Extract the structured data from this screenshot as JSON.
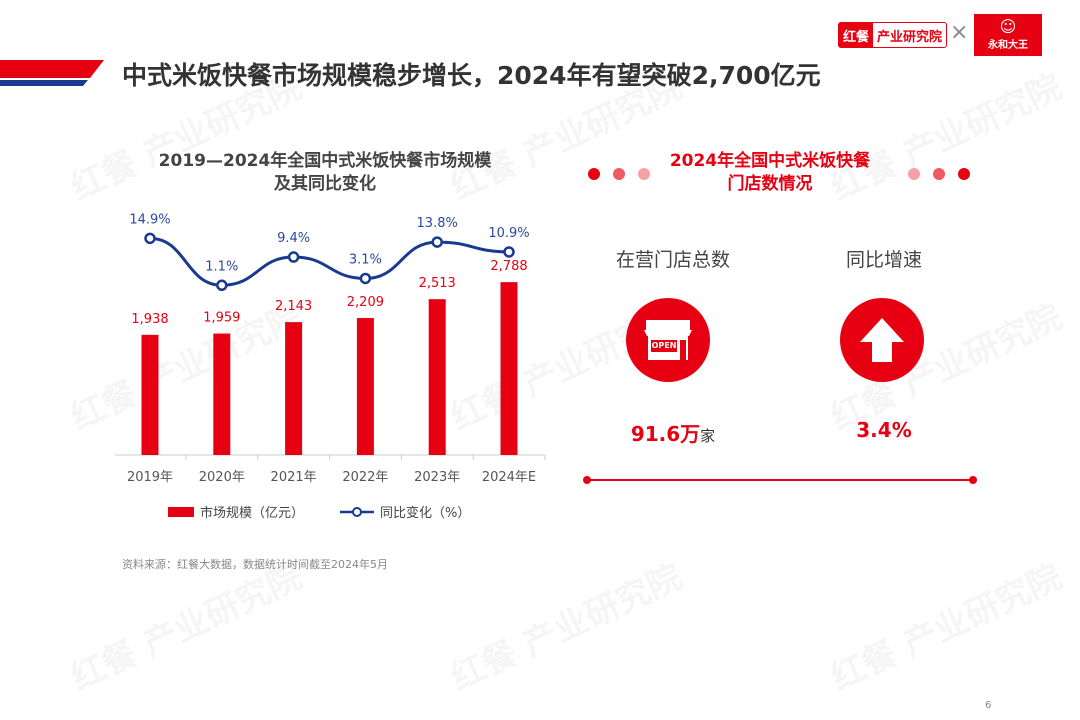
{
  "header": {
    "title": "中式米饭快餐市场规模稳步增长，2024年有望突破2,700亿元",
    "brand_left": "红餐",
    "brand_right": "产业研究院",
    "times": "×",
    "partner": "永和大王",
    "page": "6"
  },
  "chart_data": {
    "type": "bar",
    "title": "2019—2024年全国中式米饭快餐市场规模\n及其同比变化",
    "title_line1": "2019—2024年全国中式米饭快餐市场规模",
    "title_line2": "及其同比变化",
    "categories": [
      "2019年",
      "2020年",
      "2021年",
      "2022年",
      "2023年",
      "2024年E"
    ],
    "series": [
      {
        "name": "市场规模（亿元）",
        "type": "bar",
        "color": "#e60012",
        "values": [
          1938,
          1959,
          2143,
          2209,
          2513,
          2788
        ],
        "labels": [
          "1,938",
          "1,959",
          "2,143",
          "2,209",
          "2,513",
          "2,788"
        ]
      },
      {
        "name": "同比变化（%）",
        "type": "line",
        "color": "#1a3a8f",
        "values": [
          14.9,
          1.1,
          9.4,
          3.1,
          13.8,
          10.9
        ],
        "labels": [
          "14.9%",
          "1.1%",
          "9.4%",
          "3.1%",
          "13.8%",
          "10.9%"
        ]
      }
    ],
    "legend": "bottom"
  },
  "right": {
    "title_line1": "2024年全国中式米饭快餐",
    "title_line2": "门店数情况",
    "stores_label": "在营门店总数",
    "growth_label": "同比增速",
    "stores_value": "91.6万",
    "stores_unit": "家",
    "growth_value": "3.4%",
    "open_sign": "OPEN"
  },
  "source": "资料来源：红餐大数据，数据统计时间截至2024年5月",
  "watermark": "红餐 产业研究院"
}
